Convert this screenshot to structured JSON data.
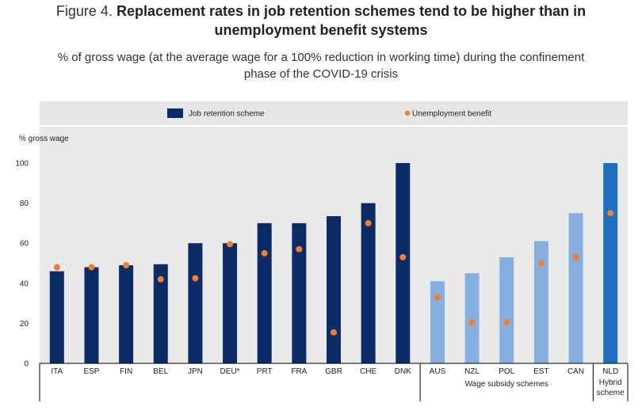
{
  "figure": {
    "prefix": "Figure 4. ",
    "title_line1": "Replacement rates in job retention schemes tend to be higher than in",
    "title_line2": "unemployment benefit systems",
    "subtitle_line1": "% of gross wage (at the average wage for a 100% reduction in working time) during the confinement",
    "subtitle_line2": "phase of the COVID-19 crisis"
  },
  "chart_data": {
    "type": "bar",
    "ylabel": "% gross wage",
    "ylim": [
      0,
      100
    ],
    "yticks": [
      0,
      20,
      40,
      60,
      80,
      100
    ],
    "grid": false,
    "legend_position": "top",
    "categories": [
      "ITA",
      "ESP",
      "FIN",
      "BEL",
      "JPN",
      "DEU*",
      "PRT",
      "FRA",
      "GBR",
      "CHE",
      "DNK",
      "AUS",
      "NZL",
      "POL",
      "EST",
      "CAN",
      "NLD"
    ],
    "series": [
      {
        "name": "Job retention scheme",
        "kind": "bar",
        "values": [
          46,
          48,
          49,
          49.5,
          60,
          60,
          70,
          70,
          73.5,
          80,
          100,
          41,
          45,
          53,
          61,
          75,
          100
        ]
      },
      {
        "name": "Unemployment benefit",
        "kind": "marker",
        "values": [
          48,
          48,
          49,
          42,
          42.5,
          59.5,
          55,
          57,
          15.5,
          70,
          53,
          33,
          20.5,
          20.5,
          50,
          53,
          75
        ]
      }
    ],
    "groups": [
      {
        "label": "",
        "categories": [
          "ITA",
          "ESP",
          "FIN",
          "BEL",
          "JPN",
          "DEU*",
          "PRT",
          "FRA",
          "GBR",
          "CHE",
          "DNK"
        ],
        "color": "#0b2c66"
      },
      {
        "label": "Wage subsidy schemes",
        "categories": [
          "AUS",
          "NZL",
          "POL",
          "EST",
          "CAN"
        ],
        "color": "#86aedf"
      },
      {
        "label": "Hybrid scheme",
        "categories": [
          "NLD"
        ],
        "color": "#1f6fc0"
      }
    ],
    "colors": {
      "job_retention": "#0b2c66",
      "wage_subsidy": "#86aedf",
      "hybrid": "#1f6fc0",
      "marker": "#ef7d32",
      "legend_bg": "#e6e6e6",
      "plot_bg": "#e9e9e9"
    }
  }
}
